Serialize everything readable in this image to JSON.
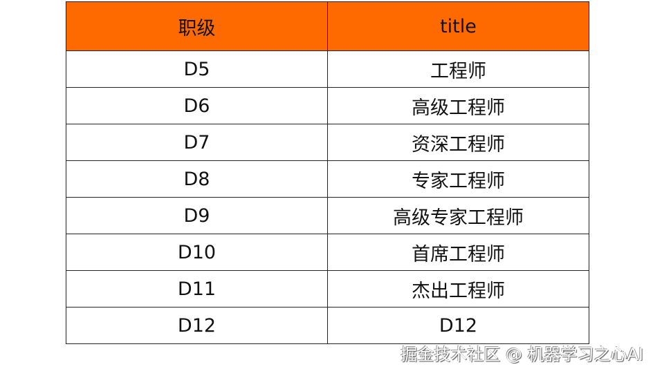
{
  "table": {
    "header_color": "#ff6a00",
    "columns": [
      "职级",
      "title"
    ],
    "rows": [
      [
        "D5",
        "工程师"
      ],
      [
        "D6",
        "高级工程师"
      ],
      [
        "D7",
        "资深工程师"
      ],
      [
        "D8",
        "专家工程师"
      ],
      [
        "D9",
        "高级专家工程师"
      ],
      [
        "D10",
        "首席工程师"
      ],
      [
        "D11",
        "杰出工程师"
      ],
      [
        "D12",
        "D12"
      ]
    ]
  },
  "watermark": "掘金技术社区 @ 机器学习之心AI"
}
